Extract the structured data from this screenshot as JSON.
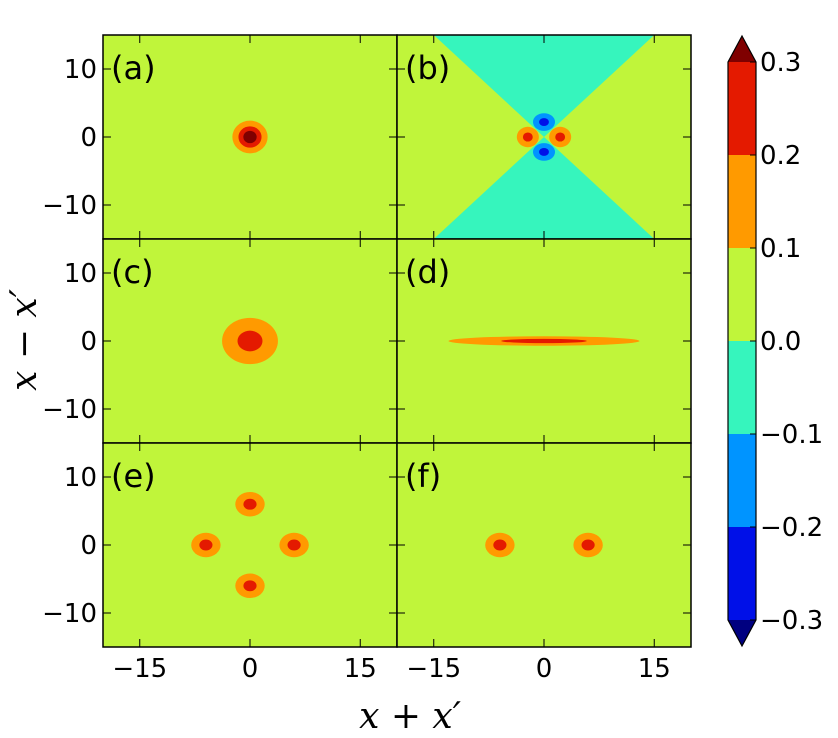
{
  "chart_data": {
    "type": "heatmap",
    "title": "",
    "xlabel": "x + x′",
    "ylabel": "x − x′",
    "xlim": [
      -20,
      20
    ],
    "ylim": [
      -15,
      15
    ],
    "xticks": [
      -15,
      0,
      15
    ],
    "xtick_labels": [
      "−15",
      "0",
      "15"
    ],
    "yticks": [
      10,
      0,
      -10
    ],
    "ytick_labels": [
      "10",
      "0",
      "−10"
    ],
    "colorbar": {
      "levels": [
        -0.3,
        -0.2,
        -0.1,
        0.0,
        0.1,
        0.2,
        0.3
      ],
      "tick_labels": [
        "0.3",
        "0.2",
        "0.1",
        "0.0",
        "−0.1",
        "−0.2",
        "−0.3"
      ],
      "colors": {
        "extend_high": "#7f0000",
        "b_0.2_0.3": "#e41a00",
        "b_0.1_0.2": "#ff9a00",
        "b_0.0_0.1": "#c0f53a",
        "b_-0.1_0.0": "#36f5bd",
        "b_-0.2_-0.1": "#0094ff",
        "b_-0.3_-0.2": "#0010e8",
        "extend_low": "#000080"
      }
    },
    "panels": [
      {
        "label": "(a)",
        "background": 0.05,
        "features": [
          {
            "type": "blob",
            "center": [
              0,
              0
            ],
            "rx": 2.4,
            "ry": 2.4,
            "peak": 0.35
          }
        ]
      },
      {
        "label": "(b)",
        "background": 0.05,
        "features": [
          {
            "type": "hourglass",
            "value": -0.05
          },
          {
            "type": "blob",
            "center": [
              -2.2,
              0
            ],
            "rx": 1.5,
            "ry": 1.5,
            "peak": 0.25
          },
          {
            "type": "blob",
            "center": [
              2.2,
              0
            ],
            "rx": 1.5,
            "ry": 1.5,
            "peak": 0.25
          },
          {
            "type": "blob",
            "center": [
              0,
              2.2
            ],
            "rx": 1.5,
            "ry": 1.3,
            "peak": -0.25
          },
          {
            "type": "blob",
            "center": [
              0,
              -2.2
            ],
            "rx": 1.5,
            "ry": 1.3,
            "peak": -0.25
          }
        ]
      },
      {
        "label": "(c)",
        "background": 0.05,
        "features": [
          {
            "type": "blob",
            "center": [
              0,
              0
            ],
            "rx": 3.8,
            "ry": 3.4,
            "peak": 0.25
          }
        ]
      },
      {
        "label": "(d)",
        "background": 0.05,
        "features": [
          {
            "type": "blob",
            "center": [
              0,
              0
            ],
            "rx": 13,
            "ry": 0.7,
            "peak": 0.25
          }
        ]
      },
      {
        "label": "(e)",
        "background": 0.05,
        "features": [
          {
            "type": "blob",
            "center": [
              0,
              6
            ],
            "rx": 2.0,
            "ry": 1.8,
            "peak": 0.25
          },
          {
            "type": "blob",
            "center": [
              -6,
              0
            ],
            "rx": 2.0,
            "ry": 1.8,
            "peak": 0.25
          },
          {
            "type": "blob",
            "center": [
              6,
              0
            ],
            "rx": 2.0,
            "ry": 1.8,
            "peak": 0.25
          },
          {
            "type": "blob",
            "center": [
              0,
              -6
            ],
            "rx": 2.0,
            "ry": 1.8,
            "peak": 0.25
          }
        ]
      },
      {
        "label": "(f)",
        "background": 0.05,
        "features": [
          {
            "type": "blob",
            "center": [
              -6,
              0
            ],
            "rx": 2.0,
            "ry": 1.8,
            "peak": 0.25
          },
          {
            "type": "blob",
            "center": [
              6,
              0
            ],
            "rx": 2.0,
            "ry": 1.8,
            "peak": 0.25
          }
        ]
      }
    ]
  }
}
